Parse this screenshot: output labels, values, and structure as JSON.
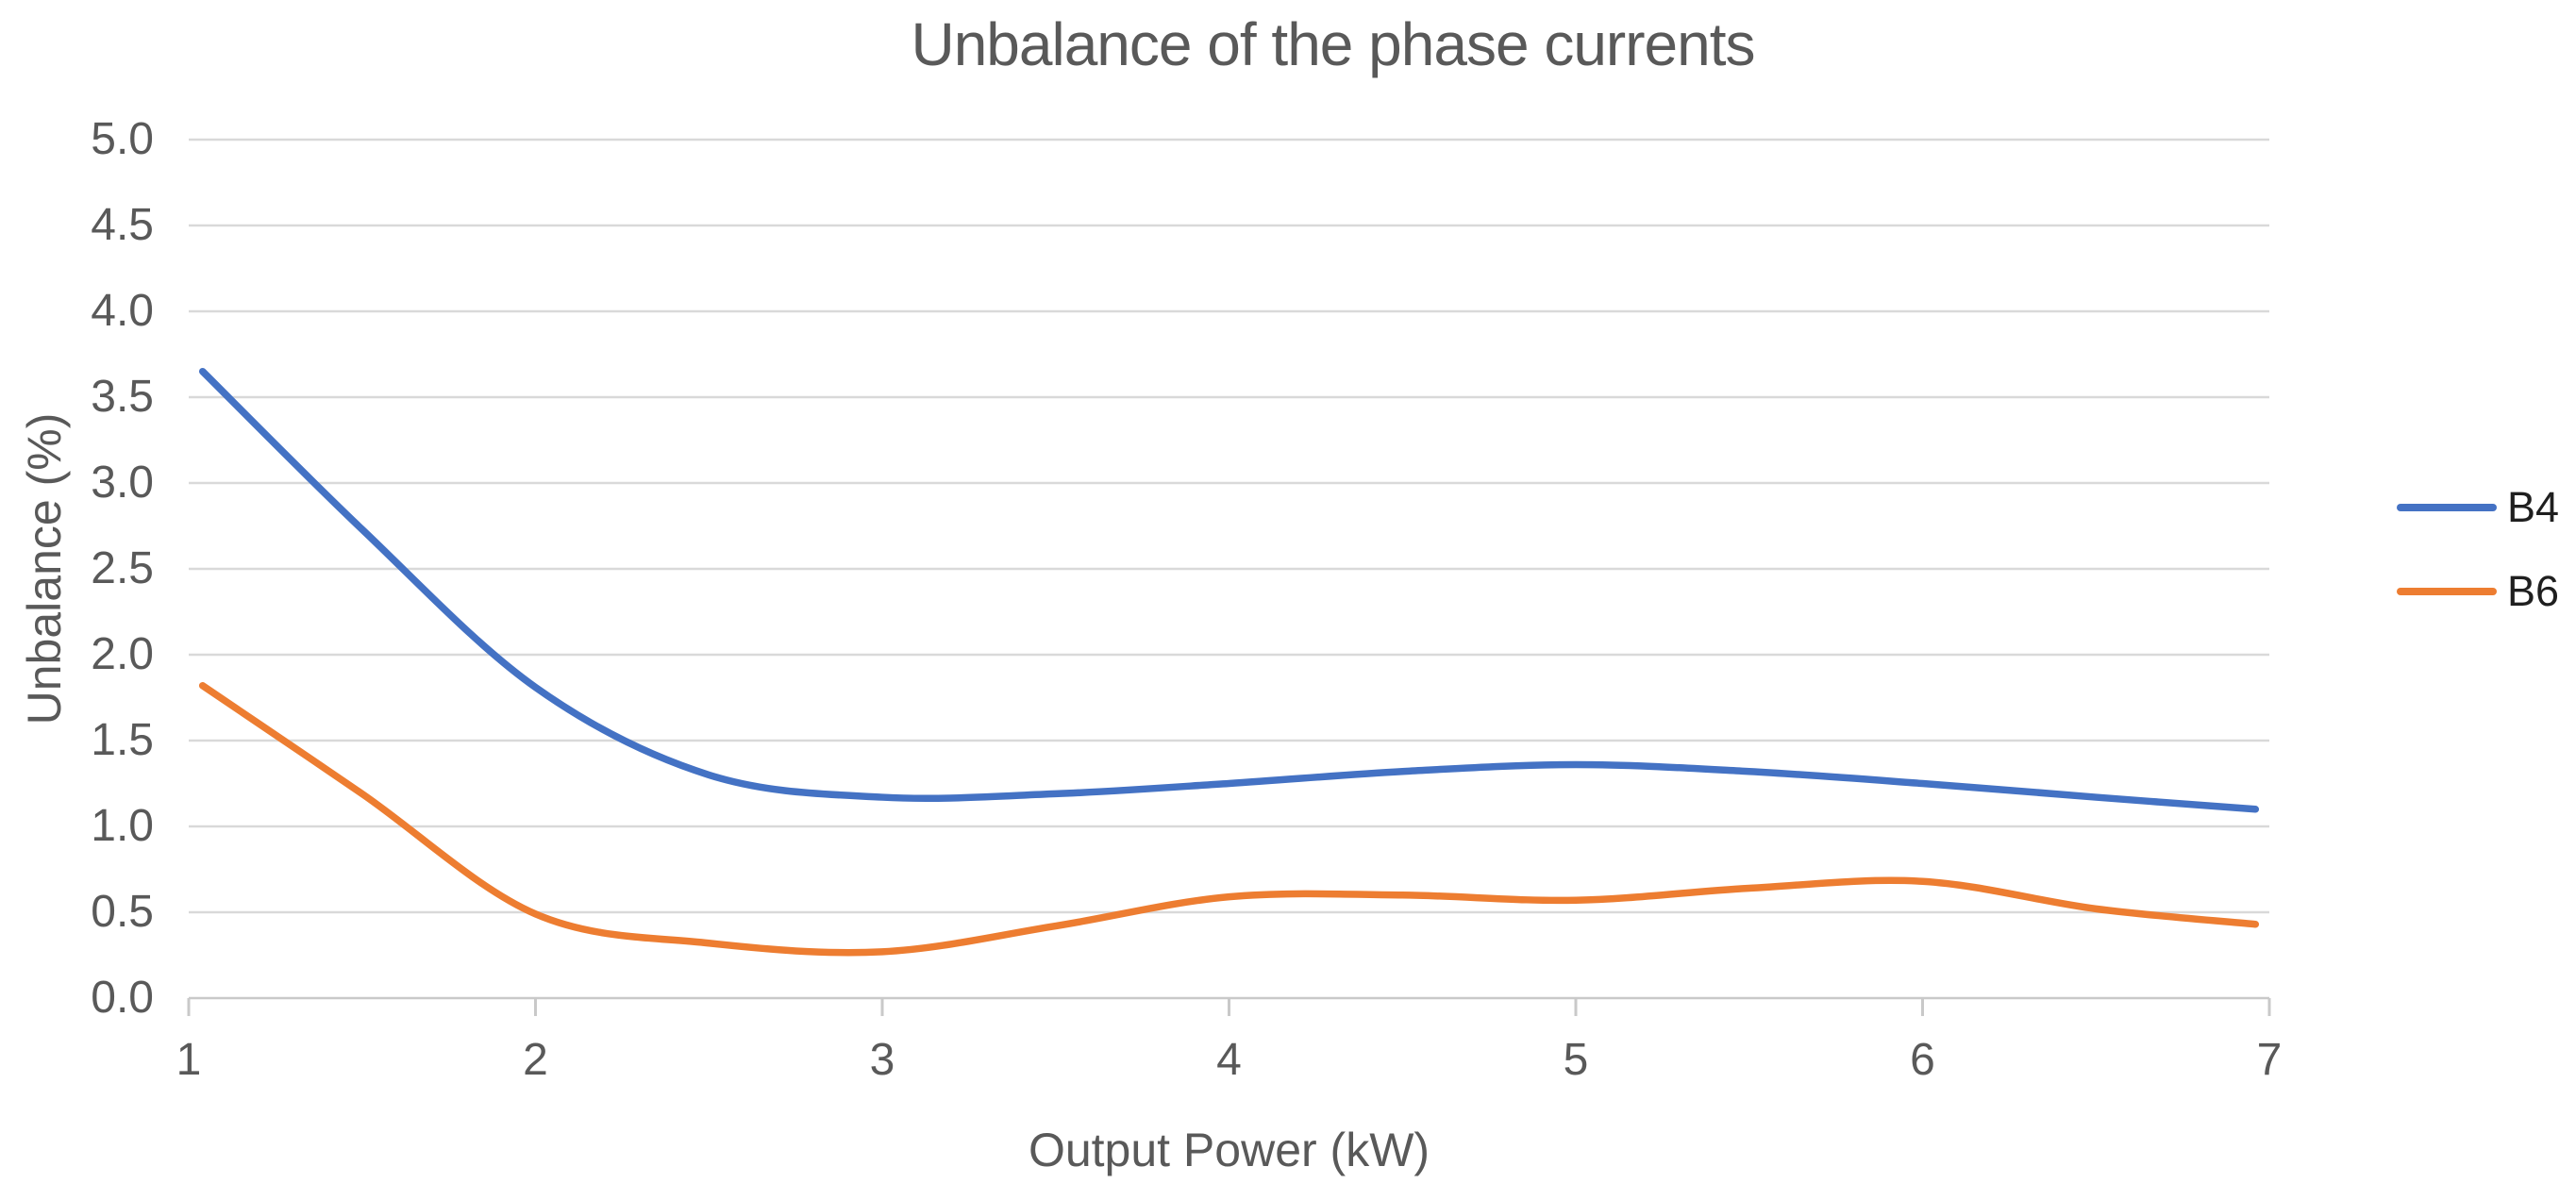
{
  "colors": {
    "b4": "#4472C4",
    "b6": "#ED7D31",
    "gridline": "#D9D9D9",
    "axis_line": "#C9C9C9",
    "axis_text": "#595959",
    "legend_text": "#1F1F1F",
    "background": "#FFFFFF"
  },
  "legend": {
    "position": "right",
    "entries": [
      {
        "label": "B4",
        "color": "#4472C4"
      },
      {
        "label": "B6",
        "color": "#ED7D31"
      }
    ]
  },
  "chart_data": {
    "type": "line",
    "title": "Unbalance of the phase currents",
    "xlabel": "Output Power (kW)",
    "ylabel": "Unbalance (%)",
    "xlim": [
      1,
      7
    ],
    "ylim": [
      0.0,
      5.0
    ],
    "x_tick_labels": [
      "1",
      "2",
      "3",
      "4",
      "5",
      "6",
      "7"
    ],
    "y_tick_labels": [
      "5.0",
      "4.5",
      "4.0",
      "3.5",
      "3.0",
      "2.5",
      "2.0",
      "1.5",
      "1.0",
      "0.5",
      "0.0"
    ],
    "grid": "horizontal",
    "line_style": "smooth",
    "legend_position": "right",
    "x": [
      1.04,
      1.5,
      2.0,
      2.5,
      3.0,
      3.5,
      4.0,
      4.5,
      5.0,
      5.5,
      6.0,
      6.5,
      6.96
    ],
    "series": [
      {
        "name": "B4",
        "color": "#4472C4",
        "values": [
          3.65,
          2.73,
          1.81,
          1.3,
          1.17,
          1.19,
          1.25,
          1.32,
          1.36,
          1.32,
          1.25,
          1.17,
          1.1
        ]
      },
      {
        "name": "B6",
        "color": "#ED7D31",
        "values": [
          1.82,
          1.19,
          0.49,
          0.32,
          0.27,
          0.42,
          0.59,
          0.6,
          0.57,
          0.64,
          0.68,
          0.52,
          0.43
        ]
      }
    ]
  }
}
